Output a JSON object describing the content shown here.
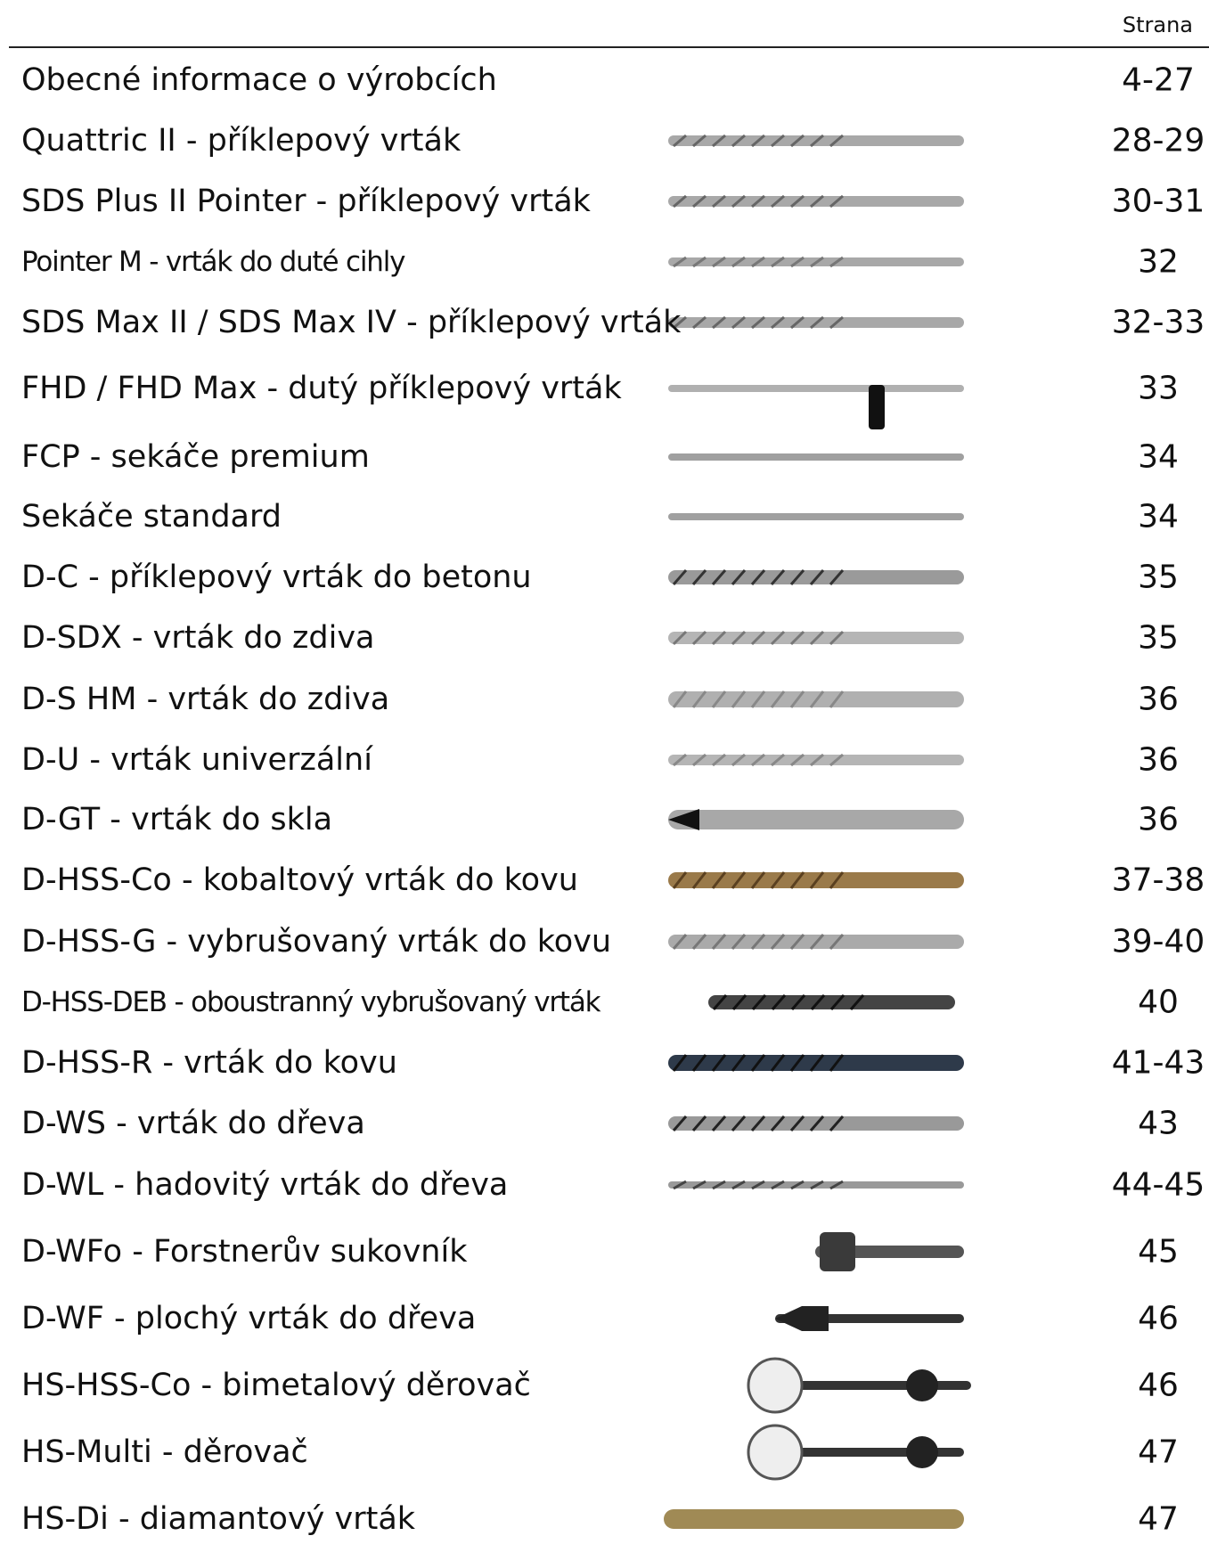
{
  "header": {
    "page_label": "Strana"
  },
  "rows": [
    {
      "title": "Obecné informace o výrobcích",
      "pages": "4-27"
    },
    {
      "title": "Quattric II - příklepový vrták",
      "pages": "28-29"
    },
    {
      "title": "SDS Plus II Pointer - příklepový vrták",
      "pages": "30-31"
    },
    {
      "title": "Pointer M - vrták do duté cihly",
      "pages": "32"
    },
    {
      "title": "SDS Max II / SDS Max IV - příklepový vrták",
      "pages": "32-33"
    },
    {
      "title": "FHD / FHD Max - dutý příklepový vrták",
      "pages": "33"
    },
    {
      "title": "FCP - sekáče premium",
      "pages": "34"
    },
    {
      "title": "Sekáče standard",
      "pages": "34"
    },
    {
      "title": "D-C - příklepový vrták do betonu",
      "pages": "35"
    },
    {
      "title": "D-SDX - vrták do zdiva",
      "pages": "35"
    },
    {
      "title": "D-S HM - vrták do zdiva",
      "pages": "36"
    },
    {
      "title": "D-U - vrták univerzální",
      "pages": "36"
    },
    {
      "title": "D-GT - vrták do skla",
      "pages": "36"
    },
    {
      "title": "D-HSS-Co - kobaltový vrták do kovu",
      "pages": "37-38"
    },
    {
      "title": "D-HSS-G - vybrušovaný vrták do kovu",
      "pages": "39-40"
    },
    {
      "title": "D-HSS-DEB - oboustranný vybrušovaný vrták",
      "pages": "40"
    },
    {
      "title": "D-HSS-R - vrták do kovu",
      "pages": "41-43"
    },
    {
      "title": "D-WS - vrták do dřeva",
      "pages": "43"
    },
    {
      "title": "D-WL - hadovitý vrták do dřeva",
      "pages": "44-45"
    },
    {
      "title": "D-WFo - Forstnerův sukovník",
      "pages": "45"
    },
    {
      "title": "D-WF - plochý vrták do dřeva",
      "pages": "46"
    },
    {
      "title": "HS-HSS-Co - bimetalový děrovač",
      "pages": "46"
    },
    {
      "title": "HS-Multi - děrovač",
      "pages": "47"
    },
    {
      "title": "HS-Di - diamantový vrták",
      "pages": "47"
    }
  ]
}
